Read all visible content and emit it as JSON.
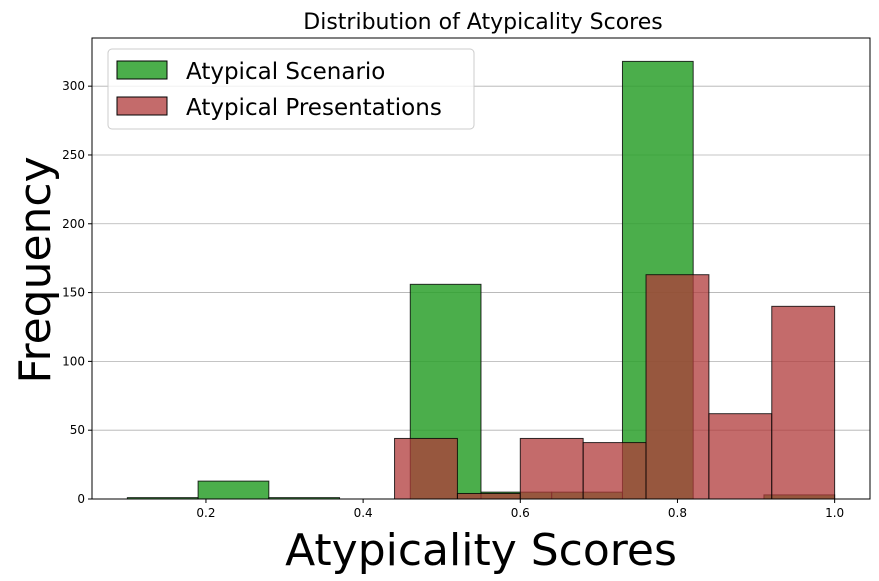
{
  "chart_data": {
    "type": "bar",
    "title": "Distribution of Atypicality Scores",
    "xlabel": "Atypicality Scores",
    "ylabel": "Frequency",
    "xlim": [
      0.055,
      1.045
    ],
    "ylim": [
      0,
      335
    ],
    "xticks": [
      0.2,
      0.4,
      0.6,
      0.8,
      1.0
    ],
    "xtick_labels": [
      "0.2",
      "0.4",
      "0.6",
      "0.8",
      "1.0"
    ],
    "yticks": [
      0,
      50,
      100,
      150,
      200,
      250,
      300
    ],
    "ytick_labels": [
      "0",
      "50",
      "100",
      "150",
      "200",
      "250",
      "300"
    ],
    "grid": "y",
    "legend_position": "top-left",
    "series": [
      {
        "name": "Atypical Scenario",
        "color": "#2ca02c",
        "alpha": 0.85,
        "bins": [
          {
            "x0": 0.1,
            "x1": 0.19,
            "count": 1
          },
          {
            "x0": 0.19,
            "x1": 0.28,
            "count": 13
          },
          {
            "x0": 0.28,
            "x1": 0.37,
            "count": 1
          },
          {
            "x0": 0.37,
            "x1": 0.46,
            "count": 0
          },
          {
            "x0": 0.46,
            "x1": 0.55,
            "count": 156
          },
          {
            "x0": 0.55,
            "x1": 0.64,
            "count": 5
          },
          {
            "x0": 0.64,
            "x1": 0.73,
            "count": 5
          },
          {
            "x0": 0.73,
            "x1": 0.82,
            "count": 318
          },
          {
            "x0": 0.82,
            "x1": 0.91,
            "count": 0
          },
          {
            "x0": 0.91,
            "x1": 1.0,
            "count": 3
          }
        ]
      },
      {
        "name": "Atypical Presentations",
        "color": "#b03a3a",
        "alpha": 0.75,
        "bins": [
          {
            "x0": 0.2,
            "x1": 0.28,
            "count": 0
          },
          {
            "x0": 0.28,
            "x1": 0.36,
            "count": 0
          },
          {
            "x0": 0.36,
            "x1": 0.44,
            "count": 0
          },
          {
            "x0": 0.44,
            "x1": 0.52,
            "count": 44
          },
          {
            "x0": 0.52,
            "x1": 0.6,
            "count": 4
          },
          {
            "x0": 0.6,
            "x1": 0.68,
            "count": 44
          },
          {
            "x0": 0.68,
            "x1": 0.76,
            "count": 41
          },
          {
            "x0": 0.76,
            "x1": 0.84,
            "count": 163
          },
          {
            "x0": 0.84,
            "x1": 0.92,
            "count": 62
          },
          {
            "x0": 0.92,
            "x1": 1.0,
            "count": 140
          }
        ]
      }
    ]
  }
}
